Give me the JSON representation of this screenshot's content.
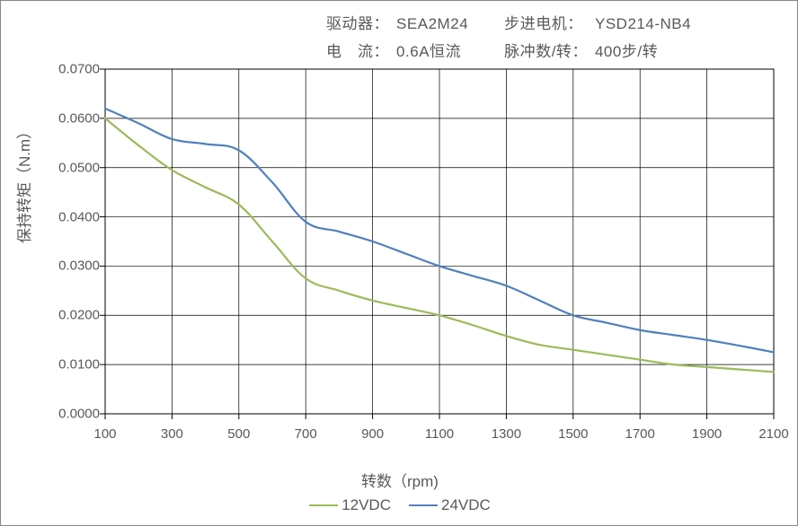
{
  "header": {
    "rows": [
      {
        "label1": "驱动器：",
        "value1": "SEA2M24",
        "label2": "步进电机：",
        "value2": "YSD214-NB4"
      },
      {
        "label1": "电　流：",
        "value1": "0.6A恒流",
        "label2": "脉冲数/转：",
        "value2": "400步/转"
      }
    ]
  },
  "chart": {
    "type": "line",
    "xlabel": "转数（rpm)",
    "ylabel": "保持转矩（N.m）",
    "background_color": "#ffffff",
    "border_color": "#000000",
    "grid_color": "#000000",
    "grid_width": 0.7,
    "font_color": "#595959",
    "xlim": [
      100,
      2100
    ],
    "ylim": [
      0.0,
      0.07
    ],
    "xticks": [
      100,
      300,
      500,
      700,
      900,
      1100,
      1300,
      1500,
      1700,
      1900,
      2100
    ],
    "yticks": [
      0.0,
      0.01,
      0.02,
      0.03,
      0.04,
      0.05,
      0.06,
      0.07
    ],
    "ytick_labels": [
      "0.0000",
      "0.0100",
      "0.0200",
      "0.0300",
      "0.0400",
      "0.0500",
      "0.0600",
      "0.0700"
    ],
    "tick_length": 6,
    "line_width": 2.2,
    "series": [
      {
        "name": "12VDC",
        "color": "#9bbb59",
        "points": [
          [
            100,
            0.06
          ],
          [
            200,
            0.0545
          ],
          [
            300,
            0.0495
          ],
          [
            400,
            0.046
          ],
          [
            500,
            0.0425
          ],
          [
            600,
            0.035
          ],
          [
            700,
            0.0275
          ],
          [
            800,
            0.025
          ],
          [
            900,
            0.023
          ],
          [
            1000,
            0.0215
          ],
          [
            1100,
            0.02
          ],
          [
            1200,
            0.018
          ],
          [
            1300,
            0.0158
          ],
          [
            1400,
            0.014
          ],
          [
            1500,
            0.013
          ],
          [
            1600,
            0.012
          ],
          [
            1700,
            0.011
          ],
          [
            1800,
            0.01
          ],
          [
            1900,
            0.0095
          ],
          [
            2000,
            0.009
          ],
          [
            2100,
            0.0085
          ]
        ]
      },
      {
        "name": "24VDC",
        "color": "#4f81bd",
        "points": [
          [
            100,
            0.062
          ],
          [
            200,
            0.059
          ],
          [
            300,
            0.0558
          ],
          [
            400,
            0.0548
          ],
          [
            500,
            0.0535
          ],
          [
            600,
            0.047
          ],
          [
            700,
            0.039
          ],
          [
            800,
            0.037
          ],
          [
            900,
            0.035
          ],
          [
            1000,
            0.0325
          ],
          [
            1100,
            0.03
          ],
          [
            1200,
            0.028
          ],
          [
            1300,
            0.026
          ],
          [
            1400,
            0.023
          ],
          [
            1500,
            0.02
          ],
          [
            1600,
            0.0185
          ],
          [
            1700,
            0.017
          ],
          [
            1800,
            0.016
          ],
          [
            1900,
            0.015
          ],
          [
            2000,
            0.0138
          ],
          [
            2100,
            0.0125
          ]
        ]
      }
    ]
  }
}
